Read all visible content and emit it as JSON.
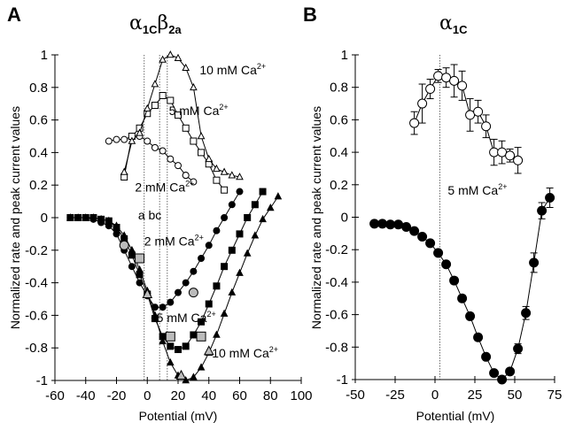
{
  "chart_data": [
    {
      "panel": "A",
      "type": "line",
      "title": "α1Cβ2a",
      "title_parts": {
        "alpha": "α",
        "alpha_sub": "1C",
        "beta": "β",
        "beta_sub": "2a"
      },
      "xlabel": "Potential (mV)",
      "ylabel": "Normalized rate and peak current values",
      "xlim": [
        -60,
        100
      ],
      "ylim": [
        -1,
        1
      ],
      "xticks": [
        -60,
        -40,
        -20,
        0,
        20,
        40,
        60,
        80,
        100
      ],
      "yticks": [
        1,
        0.8,
        0.6,
        0.4,
        0.2,
        0,
        -0.2,
        -0.4,
        -0.6,
        -0.8,
        -1
      ],
      "ytick_labels": [
        "1",
        "0.8",
        "0.6",
        "0.4",
        "0.2",
        "0",
        "-0.2",
        "-0.4",
        "-0.6",
        "-0.8",
        "-1"
      ],
      "vlines": [
        {
          "x": -2,
          "label": "a"
        },
        {
          "x": 8,
          "label": "b"
        },
        {
          "x": 13,
          "label": "c"
        }
      ],
      "series": [
        {
          "name": "2 mM Ca2+ rate",
          "marker": "open-circle",
          "x": [
            -25,
            -20,
            -15,
            -10,
            -5,
            0,
            5,
            10,
            15,
            20,
            25
          ],
          "y": [
            0.47,
            0.48,
            0.48,
            0.5,
            0.5,
            0.47,
            0.43,
            0.41,
            0.36,
            0.32,
            0.26
          ]
        },
        {
          "name": "2 mM Ca2+ rate tail",
          "marker": "open-circle",
          "x": [
            25,
            30
          ],
          "y": [
            0.26,
            0.22
          ]
        },
        {
          "name": "5 mM Ca2+ rate",
          "marker": "open-square",
          "x": [
            -15,
            -10,
            -5,
            0,
            5,
            10,
            15,
            20,
            25,
            30,
            35,
            40,
            45,
            50
          ],
          "y": [
            0.25,
            0.5,
            0.55,
            0.64,
            0.69,
            0.75,
            0.72,
            0.63,
            0.55,
            0.47,
            0.4,
            0.33,
            0.23,
            0.17
          ]
        },
        {
          "name": "10 mM Ca2+ rate",
          "marker": "open-triangle",
          "x": [
            -15,
            -10,
            -5,
            0,
            5,
            10,
            15,
            20,
            25,
            30,
            35,
            40,
            45,
            50,
            55,
            60
          ],
          "y": [
            0.28,
            0.47,
            0.52,
            0.67,
            0.82,
            0.97,
            1.0,
            0.98,
            0.92,
            0.8,
            0.5,
            0.36,
            0.3,
            0.28,
            0.26,
            0.25
          ]
        },
        {
          "name": "2 mM Ca2+ peak current",
          "marker": "filled-circle",
          "x": [
            -50,
            -45,
            -40,
            -35,
            -30,
            -25,
            -20,
            -15,
            -10,
            -5,
            0,
            5,
            10,
            15,
            20,
            25,
            30,
            35,
            40,
            45,
            50,
            55,
            60
          ],
          "y": [
            0,
            0,
            0,
            -0.01,
            -0.03,
            -0.05,
            -0.1,
            -0.2,
            -0.3,
            -0.4,
            -0.48,
            -0.55,
            -0.55,
            -0.52,
            -0.46,
            -0.4,
            -0.33,
            -0.25,
            -0.17,
            -0.08,
            0,
            0.08,
            0.16
          ]
        },
        {
          "name": "5 mM Ca2+ peak current",
          "marker": "filled-square",
          "x": [
            -50,
            -45,
            -40,
            -35,
            -30,
            -25,
            -20,
            -15,
            -10,
            -5,
            0,
            5,
            10,
            15,
            20,
            25,
            30,
            35,
            40,
            45,
            50,
            55,
            60,
            65,
            70,
            75
          ],
          "y": [
            0,
            0,
            0,
            0,
            -0.01,
            -0.02,
            -0.06,
            -0.13,
            -0.23,
            -0.35,
            -0.47,
            -0.62,
            -0.73,
            -0.79,
            -0.81,
            -0.79,
            -0.72,
            -0.64,
            -0.53,
            -0.42,
            -0.3,
            -0.2,
            -0.1,
            0,
            0.08,
            0.16
          ]
        },
        {
          "name": "10 mM Ca2+ peak current",
          "marker": "filled-triangle",
          "x": [
            -50,
            -45,
            -40,
            -35,
            -30,
            -25,
            -20,
            -15,
            -10,
            -5,
            0,
            5,
            10,
            15,
            20,
            25,
            30,
            35,
            40,
            45,
            50,
            55,
            60,
            65,
            70,
            75,
            80,
            85
          ],
          "y": [
            0,
            0,
            0,
            0,
            -0.01,
            -0.02,
            -0.05,
            -0.11,
            -0.2,
            -0.32,
            -0.45,
            -0.6,
            -0.76,
            -0.89,
            -0.97,
            -1.0,
            -0.98,
            -0.92,
            -0.83,
            -0.72,
            -0.59,
            -0.46,
            -0.34,
            -0.22,
            -0.11,
            -0.01,
            0.06,
            0.13
          ]
        },
        {
          "name": "markers a/b/c on peak current",
          "marker": "gray-circle",
          "x": [
            -15,
            30
          ],
          "y": [
            -0.17,
            -0.46
          ]
        },
        {
          "name": "markers 5 mM gray",
          "marker": "gray-square",
          "x": [
            -5,
            15,
            35
          ],
          "y": [
            -0.25,
            -0.73,
            -0.73
          ]
        },
        {
          "name": "markers 10 mM gray",
          "marker": "gray-triangle",
          "x": [
            0,
            22,
            40
          ],
          "y": [
            -0.47,
            -0.97,
            -0.82
          ]
        }
      ],
      "annotations": [
        {
          "text": "10 mM Ca",
          "sup": "2+",
          "x": 34,
          "y": 0.88
        },
        {
          "text": "5 mM Ca",
          "sup": "2+",
          "x": 14,
          "y": 0.63
        },
        {
          "text": "2 mM Ca",
          "sup": "2+",
          "x": -8,
          "y": 0.16
        },
        {
          "text": "a  bc",
          "sup": "",
          "x": -6,
          "y": -0.01
        },
        {
          "text": "2 mM Ca",
          "sup": "2+",
          "x": -2,
          "y": -0.17
        },
        {
          "text": "5 mM Ca",
          "sup": "2+",
          "x": 6,
          "y": -0.64
        },
        {
          "text": "10 mM Ca",
          "sup": "2+",
          "x": 42,
          "y": -0.86
        }
      ],
      "panel_label": "A"
    },
    {
      "panel": "B",
      "type": "line",
      "title": "α1C",
      "title_parts": {
        "alpha": "α",
        "alpha_sub": "1C"
      },
      "xlabel": "Potential (mV)",
      "ylabel": "Normalized rate and peak current values",
      "xlim": [
        -50,
        75
      ],
      "ylim": [
        -1,
        1
      ],
      "xticks": [
        -50,
        -25,
        0,
        25,
        50,
        75
      ],
      "yticks": [
        1,
        0.8,
        0.6,
        0.4,
        0.2,
        0,
        -0.2,
        -0.4,
        -0.6,
        -0.8,
        -1
      ],
      "ytick_labels": [
        "1",
        "0.8",
        "0.6",
        "0.4",
        "0.2",
        "0",
        "-0.2",
        "-0.4",
        "-0.6",
        "-0.8",
        "-1"
      ],
      "vlines": [
        {
          "x": 3,
          "label": ""
        }
      ],
      "series": [
        {
          "name": "5 mM Ca2+ rate",
          "marker": "open-circle",
          "x": [
            -13,
            -8,
            -3,
            2,
            7,
            12,
            17,
            22,
            27,
            32,
            37,
            42,
            47,
            52
          ],
          "y": [
            0.58,
            0.7,
            0.79,
            0.87,
            0.86,
            0.84,
            0.81,
            0.63,
            0.65,
            0.56,
            0.4,
            0.4,
            0.38,
            0.35
          ],
          "err": [
            0.07,
            0.12,
            0.06,
            0.04,
            0.06,
            0.1,
            0.09,
            0.1,
            0.07,
            0.07,
            0.08,
            0.07,
            0.04,
            0.08
          ]
        },
        {
          "name": "5 mM Ca2+ peak current",
          "marker": "filled-circle",
          "x": [
            -38,
            -33,
            -28,
            -23,
            -18,
            -13,
            -8,
            -3,
            2,
            7,
            12,
            17,
            22,
            27,
            32,
            37,
            42,
            47,
            52,
            57,
            62,
            67,
            72
          ],
          "y": [
            -0.04,
            -0.04,
            -0.045,
            -0.045,
            -0.06,
            -0.085,
            -0.12,
            -0.16,
            -0.22,
            -0.29,
            -0.39,
            -0.5,
            -0.61,
            -0.74,
            -0.86,
            -0.96,
            -1.0,
            -0.95,
            -0.81,
            -0.59,
            -0.28,
            0.04,
            0.12
          ],
          "err": [
            0,
            0,
            0,
            0,
            0,
            0,
            0,
            0,
            0.015,
            0.015,
            0.02,
            0.02,
            0.02,
            0.02,
            0.015,
            0.015,
            0.01,
            0.015,
            0.03,
            0.04,
            0.06,
            0.05,
            0.06
          ]
        }
      ],
      "annotations": [
        {
          "text": "5 mM Ca",
          "sup": "2+",
          "x": 8,
          "y": 0.14
        }
      ],
      "panel_label": "B"
    }
  ]
}
